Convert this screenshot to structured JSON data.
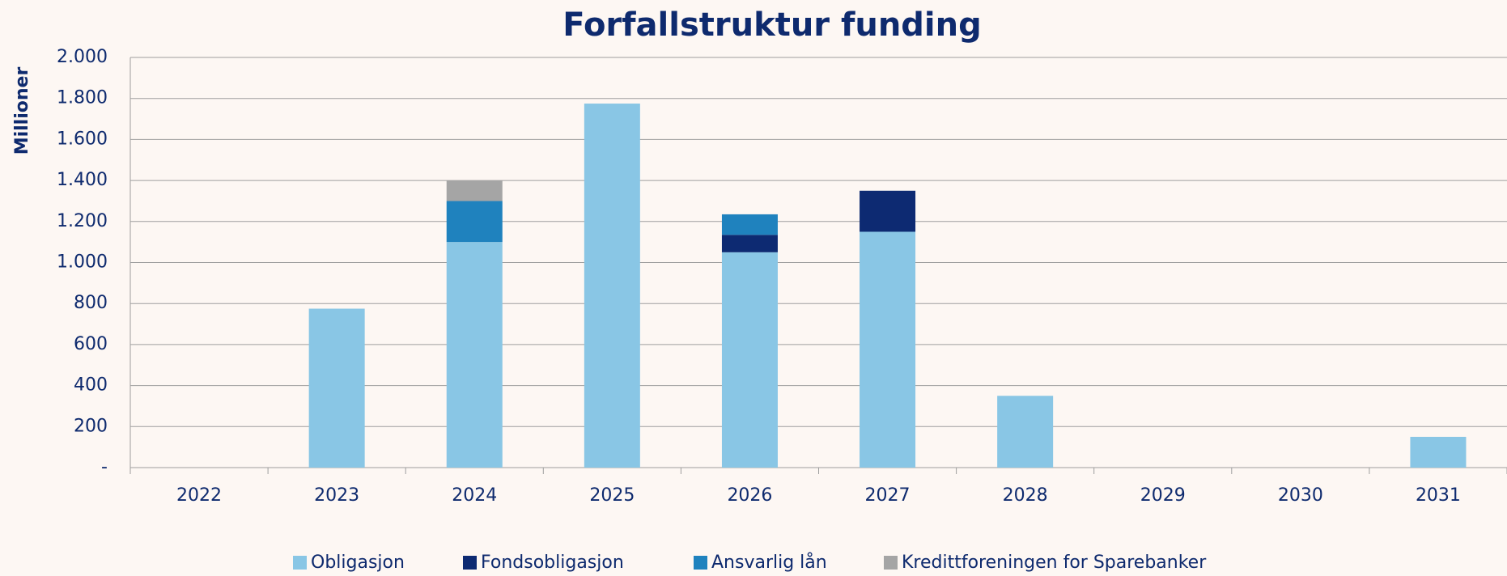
{
  "chart_data": {
    "type": "stacked_bar",
    "title": "Forfallstruktur funding",
    "y_label": "Millioner",
    "categories": [
      "2022",
      "2023",
      "2024",
      "2025",
      "2026",
      "2027",
      "2028",
      "2029",
      "2030",
      "2031"
    ],
    "series": [
      {
        "name": "Obligasjon",
        "color": "#89c6e5",
        "values": [
          0,
          775,
          1100,
          1775,
          1050,
          1150,
          350,
          0,
          0,
          150
        ]
      },
      {
        "name": "Fondsobligasjon",
        "color": "#0d2a72",
        "values": [
          0,
          0,
          0,
          0,
          85,
          200,
          0,
          0,
          0,
          0
        ]
      },
      {
        "name": "Ansvarlig lån",
        "color": "#1f82be",
        "values": [
          0,
          0,
          200,
          0,
          100,
          0,
          0,
          0,
          0,
          0
        ]
      },
      {
        "name": "Kredittforeningen for Sparebanker",
        "color": "#a5a5a5",
        "values": [
          0,
          0,
          100,
          0,
          0,
          0,
          0,
          0,
          0,
          0
        ]
      }
    ],
    "ylim": [
      0,
      2000
    ],
    "yticks": [
      {
        "value": 0,
        "label": "-"
      },
      200,
      400,
      600,
      800,
      {
        "value": 1000,
        "label": "1.000"
      },
      {
        "value": 1200,
        "label": "1.200"
      },
      {
        "value": 1400,
        "label": "1.400"
      },
      {
        "value": 1600,
        "label": "1.600"
      },
      {
        "value": 1800,
        "label": "1.800"
      },
      {
        "value": 2000,
        "label": "2.000"
      }
    ],
    "grid": true,
    "legend": "bottom"
  }
}
